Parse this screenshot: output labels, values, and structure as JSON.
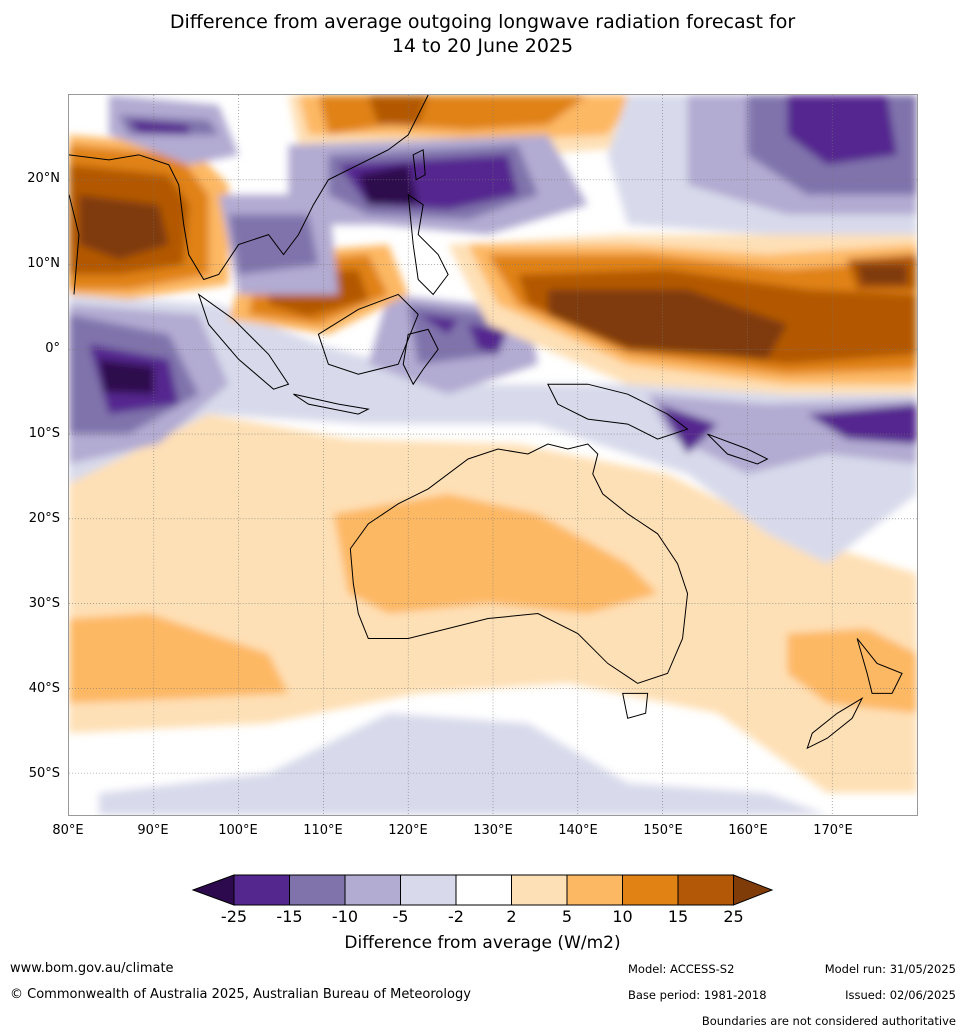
{
  "title": {
    "line1": "Difference from average outgoing longwave radiation forecast for",
    "line2": "14 to 20 June 2025"
  },
  "map": {
    "lat_labels": [
      "20°N",
      "10°N",
      "0°",
      "10°S",
      "20°S",
      "30°S",
      "40°S",
      "50°S"
    ],
    "lon_labels": [
      "80°E",
      "90°E",
      "100°E",
      "110°E",
      "120°E",
      "130°E",
      "140°E",
      "150°E",
      "160°E",
      "170°E"
    ]
  },
  "colorbar": {
    "ticks": [
      "-25",
      "-15",
      "-10",
      "-5",
      "-2",
      "2",
      "5",
      "10",
      "15",
      "25"
    ],
    "colors": {
      "below": "#2d0a4e",
      "bins": [
        "#54278f",
        "#8073ac",
        "#b2abd2",
        "#d8daeb",
        "#ffffff",
        "#fee0b6",
        "#fdb863",
        "#e08214",
        "#b35806"
      ],
      "above": "#7f3b08"
    },
    "label": "Difference from average (W/m2)"
  },
  "footer": {
    "website": "www.bom.gov.au/climate",
    "copyright": "© Commonwealth of Australia 2025, Australian Bureau of Meteorology",
    "model": "Model: ACCESS-S2",
    "model_run": "Model run: 31/05/2025",
    "base_period": "Base period: 1981-2018",
    "issued": "Issued: 02/06/2025",
    "disclaimer": "Boundaries are not considered authoritative"
  }
}
